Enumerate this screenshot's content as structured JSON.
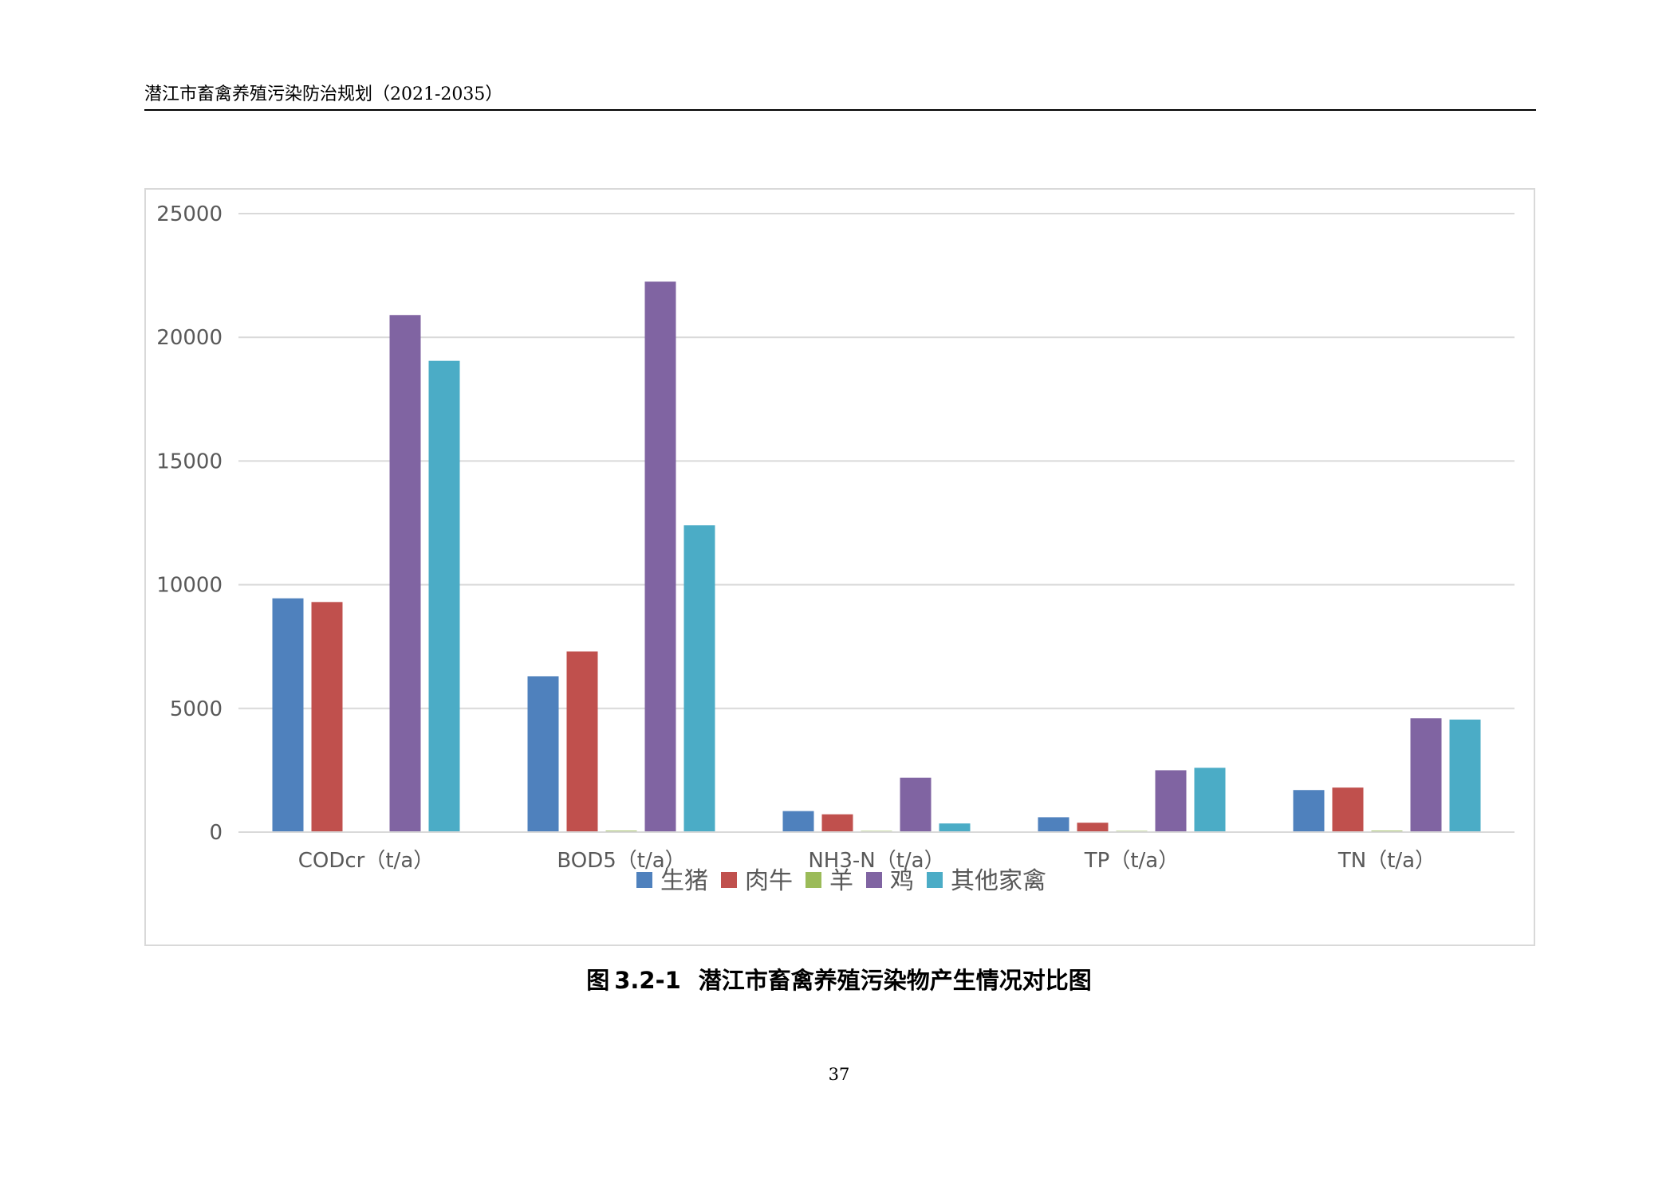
{
  "header": {
    "title": "潜江市畜禽养殖污染防治规划（2021-2035）"
  },
  "caption": {
    "label": "图",
    "number": "3.2-1",
    "text": "潜江市畜禽养殖污染物产生情况对比图"
  },
  "page_number": "37",
  "chart_data": {
    "type": "bar",
    "categories": [
      "CODcr（t/a）",
      "BOD5（t/a）",
      "NH3-N（t/a）",
      "TP（t/a）",
      "TN（t/a）"
    ],
    "series": [
      {
        "name": "生猪",
        "color": "#4f81bd",
        "values": [
          9450,
          6300,
          850,
          600,
          1700
        ]
      },
      {
        "name": "肉牛",
        "color": "#c0504d",
        "values": [
          9300,
          7300,
          720,
          380,
          1800
        ]
      },
      {
        "name": "羊",
        "color": "#9bbb59",
        "values": [
          0,
          60,
          5,
          40,
          60
        ]
      },
      {
        "name": "鸡",
        "color": "#8064a2",
        "values": [
          20900,
          22250,
          2200,
          2500,
          4600
        ]
      },
      {
        "name": "其他家禽",
        "color": "#4bacc6",
        "values": [
          19050,
          12400,
          350,
          2600,
          4550
        ]
      }
    ],
    "ylim": [
      0,
      25000
    ],
    "yticks": [
      0,
      5000,
      10000,
      15000,
      20000,
      25000
    ],
    "grid": true,
    "legend_position": "bottom"
  }
}
